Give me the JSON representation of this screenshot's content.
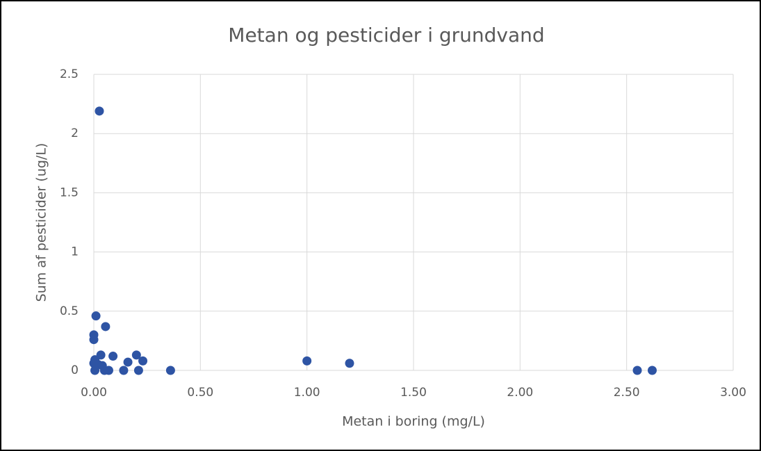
{
  "chart_data": {
    "type": "scatter",
    "title": "Metan og pesticider i grundvand",
    "x_label": "Metan i boring (mg/L)",
    "y_label": "Sum af pesticider (ug/L)",
    "x": [
      0.026,
      0.01,
      0.055,
      0.0,
      0.0,
      0.033,
      0.09,
      0.2,
      0.23,
      0.16,
      0.005,
      0.0,
      0.02,
      0.04,
      0.005,
      0.05,
      0.07,
      0.14,
      0.21,
      0.36,
      1.0,
      1.2,
      2.55,
      2.62
    ],
    "y": [
      2.19,
      0.46,
      0.37,
      0.3,
      0.26,
      0.13,
      0.12,
      0.13,
      0.08,
      0.07,
      0.09,
      0.06,
      0.05,
      0.04,
      0,
      0,
      0,
      0,
      0,
      0,
      0.08,
      0.06,
      0,
      0
    ],
    "color": "#2e54a4",
    "xlim": [
      0,
      3
    ],
    "ylim": [
      0,
      2.5
    ],
    "xticks": [
      {
        "value": 0,
        "label": "0.00"
      },
      {
        "value": 0.5,
        "label": "0.50"
      },
      {
        "value": 1,
        "label": "1.00"
      },
      {
        "value": 1.5,
        "label": "1.50"
      },
      {
        "value": 2,
        "label": "2.00"
      },
      {
        "value": 2.5,
        "label": "2.50"
      },
      {
        "value": 3,
        "label": "3.00"
      }
    ],
    "yticks": [
      0,
      0.5,
      1,
      1.5,
      2,
      2.5
    ],
    "grid": true
  }
}
